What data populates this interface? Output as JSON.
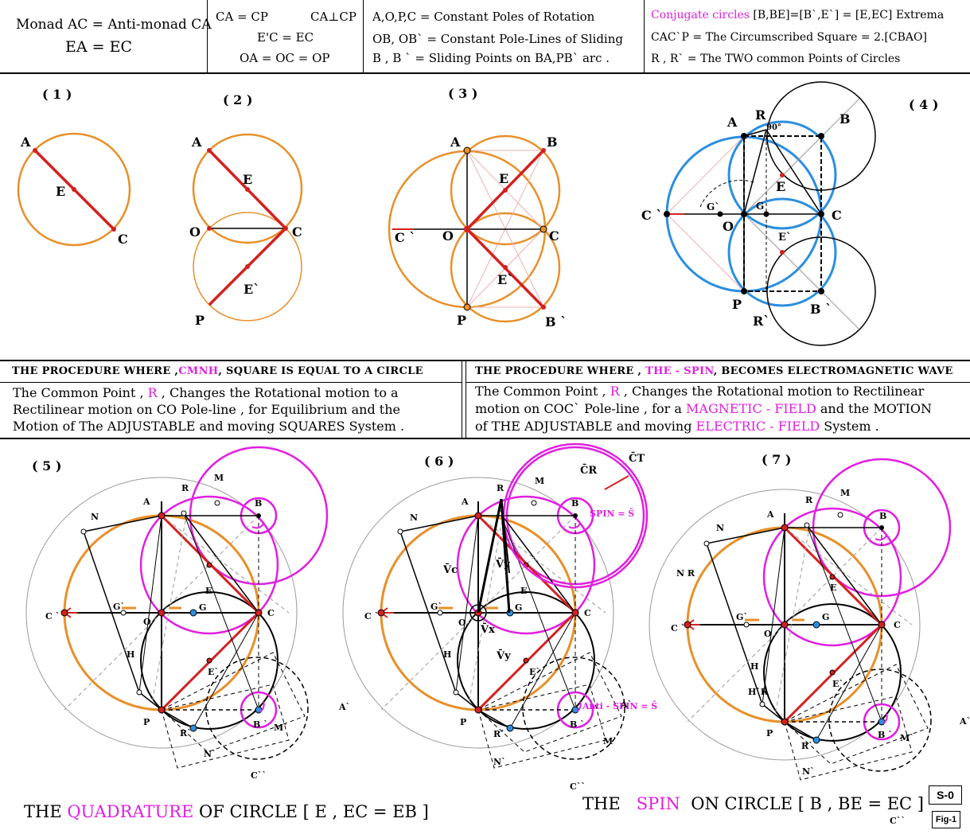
{
  "header": {
    "c1": {
      "l1": "Monad AC = Anti-monad CA",
      "l2": "EA =  EC"
    },
    "c2": {
      "l1a": "CA = CP",
      "l1b": "CA⊥CP",
      "l2": "E'C = EC",
      "l3": "OA = OC = OP"
    },
    "c3": {
      "l1": "A,O,P,C  = Constant Poles of Rotation",
      "l2": "OB, OB`  = Constant Pole-Lines of Sliding",
      "l3": "B , B `  = Sliding Points on BA,PB` arc ."
    },
    "c4": {
      "l1a": "Conjugate circles",
      "l1b": " [B,BE]=[B`,E`] = [E,EC] Extrema",
      "l2": "CAC`P = The Circumscribed Square = 2.[CBAO]",
      "l3": "R , R`  = The TWO common Points of Circles"
    }
  },
  "figures_top": {
    "f1": "( 1 )",
    "f2": "( 2 )",
    "f3": "( 3 )",
    "f4": "( 4 )"
  },
  "middle": {
    "left_bar_a": "THE  PROCEDURE  WHERE ,",
    "left_bar_b": "CMNH",
    "left_bar_c": ", SQUARE IS EQUAL TO A CIRCLE",
    "left_l1a": "The Common Point ,",
    "left_l1b": "R",
    "left_l1c": ", Changes the Rotational motion to a",
    "left_l2": "Rectilinear motion on CO Pole-line , for Equilibrium and the",
    "left_l3": "Motion of The ADJUSTABLE and moving SQUARES System .",
    "right_bar_a": "THE  PROCEDURE  WHERE ,",
    "right_bar_b": "THE - SPIN",
    "right_bar_c": ", BECOMES  ELECTROMAGNETIC WAVE",
    "right_l1a": "The Common Point ,",
    "right_l1b": "R",
    "right_l1c": ", Changes the Rotational motion to Rectilinear",
    "right_l2a": "motion on COC` Pole-line , for a",
    "right_l2b": "MAGNETIC - FIELD",
    "right_l2c": "and the MOTION",
    "right_l3a": "of THE ADJUSTABLE and moving",
    "right_l3b": "ELECTRIC - FIELD",
    "right_l3c": "System ."
  },
  "figures_bottom": {
    "f5": "( 5 )",
    "f6": "( 6 )",
    "f7": "( 7 )"
  },
  "bottom": {
    "left_a": "THE",
    "left_b": "QUADRATURE",
    "left_c": "OF CIRCLE [ E , EC = EB ]",
    "right_a": "THE",
    "right_b": "SPIN",
    "right_c": "ON CIRCLE [ B , BE = EC ]",
    "s0": "S-0",
    "fig": "Fig-1"
  },
  "labels": {
    "A": "A",
    "B": "B",
    "C": "C",
    "E": "E",
    "O": "O",
    "P": "P",
    "Ep": "E`",
    "Cp": "C `",
    "Bp": "B `",
    "R": "R",
    "Rp": "R`",
    "Gp": "G`",
    "G": "G",
    "deg": "90°",
    "M": "M",
    "N": "N",
    "H": "H",
    "Mp": "M`",
    "Np": "N`",
    "Ap": "A`",
    "Cpp": "C``",
    "NR": "N R",
    "HR": "H`R",
    "spin": "SPIN = S̄",
    "antispin": "Anti - SPIN = S̄",
    "Vc": "V̄c",
    "Vy": "V̄y",
    "Vx": "V̄x",
    "Vy2": "V̄y",
    "CR": "C̄R",
    "CT": "C̄T"
  },
  "colors": {
    "orange": "#e8902a",
    "red": "#d42020",
    "blue": "#2b8fe0",
    "magenta": "#e020e0",
    "gray": "#9a9a9a"
  }
}
